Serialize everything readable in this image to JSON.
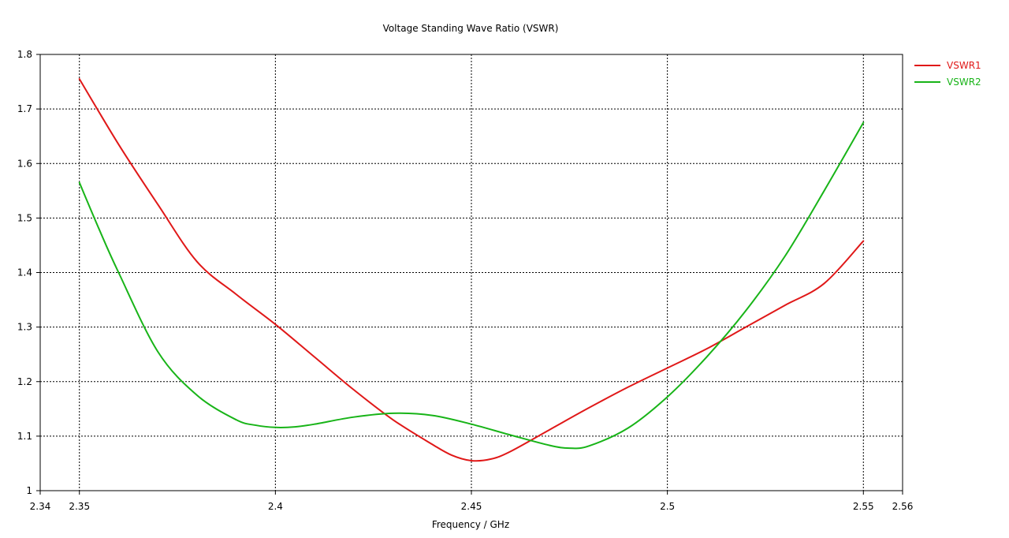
{
  "chart_data": {
    "type": "line",
    "title": "Voltage Standing Wave Ratio (VSWR)",
    "xlabel": "Frequency / GHz",
    "ylabel": "",
    "xlim": [
      2.34,
      2.56
    ],
    "ylim": [
      1.0,
      1.8
    ],
    "x_ticks": [
      "2.34",
      "2.35",
      "2.4",
      "2.45",
      "2.5",
      "2.55",
      "2.56"
    ],
    "y_ticks": [
      "1",
      "1.1",
      "1.2",
      "1.3",
      "1.4",
      "1.5",
      "1.6",
      "1.7",
      "1.8"
    ],
    "grid_x": [
      2.35,
      2.4,
      2.45,
      2.5,
      2.55
    ],
    "grid_y": [
      1.1,
      1.2,
      1.3,
      1.4,
      1.5,
      1.6,
      1.7
    ],
    "grid": true,
    "legend_position": "top-right",
    "series": [
      {
        "name": "VSWR1",
        "color": "#e01818",
        "x": [
          2.35,
          2.36,
          2.37,
          2.38,
          2.39,
          2.4,
          2.41,
          2.42,
          2.43,
          2.44,
          2.445,
          2.45,
          2.455,
          2.46,
          2.47,
          2.48,
          2.49,
          2.5,
          2.51,
          2.52,
          2.53,
          2.54,
          2.55
        ],
        "y": [
          1.755,
          1.635,
          1.525,
          1.42,
          1.36,
          1.305,
          1.245,
          1.185,
          1.13,
          1.085,
          1.065,
          1.055,
          1.058,
          1.072,
          1.112,
          1.152,
          1.19,
          1.225,
          1.26,
          1.3,
          1.34,
          1.38,
          1.458
        ]
      },
      {
        "name": "VSWR2",
        "color": "#18b418",
        "x": [
          2.35,
          2.355,
          2.36,
          2.37,
          2.38,
          2.39,
          2.395,
          2.4,
          2.405,
          2.41,
          2.42,
          2.43,
          2.44,
          2.45,
          2.46,
          2.47,
          2.475,
          2.48,
          2.49,
          2.5,
          2.51,
          2.52,
          2.53,
          2.54,
          2.55
        ],
        "y": [
          1.565,
          1.48,
          1.4,
          1.255,
          1.175,
          1.13,
          1.12,
          1.116,
          1.117,
          1.122,
          1.135,
          1.142,
          1.138,
          1.122,
          1.102,
          1.083,
          1.078,
          1.082,
          1.115,
          1.172,
          1.245,
          1.33,
          1.43,
          1.55,
          1.675
        ]
      }
    ]
  }
}
